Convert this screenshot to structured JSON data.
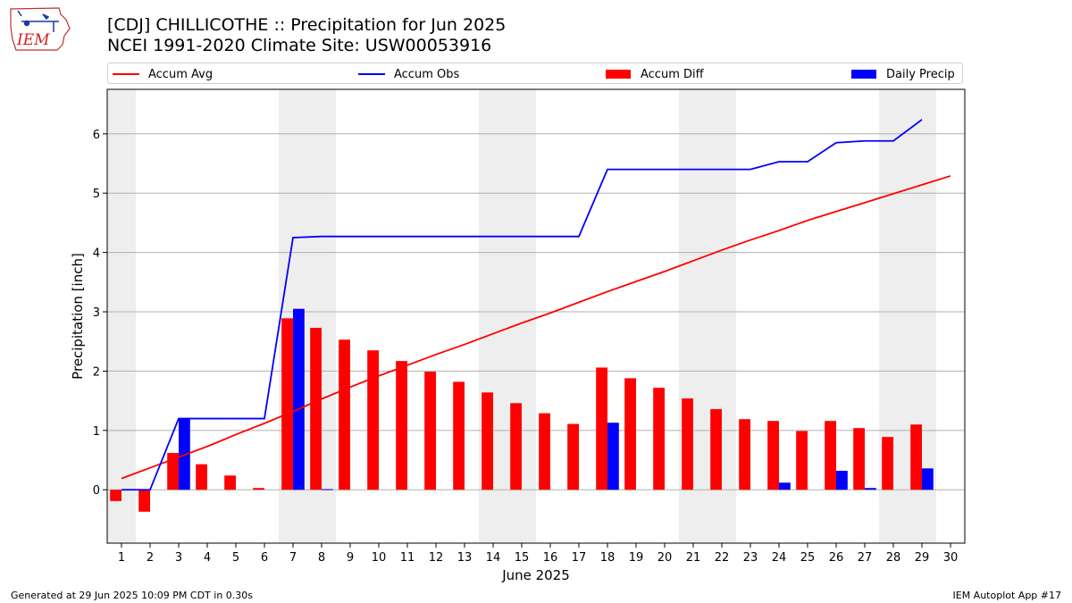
{
  "header": {
    "title_line1": "[CDJ] CHILLICOTHE :: Precipitation for Jun 2025",
    "title_line2": "NCEI 1991-2020 Climate Site: USW00053916"
  },
  "logo": {
    "text": "IEM",
    "icon": "iowa-state-outline-weather-logo"
  },
  "footer": {
    "generated": "Generated at 29 Jun 2025 10:09 PM CDT in 0.30s",
    "app": "IEM Autoplot App #17"
  },
  "colors": {
    "accum_avg": "#ff0000",
    "accum_obs": "#0000ff",
    "accum_diff": "#ff0000",
    "daily_precip": "#0000ff",
    "weekend_band": "#eeeeee",
    "grid": "#b0b0b0"
  },
  "chart_data": {
    "type": "bar",
    "xlabel": "June 2025",
    "ylabel": "Precipitation [inch]",
    "x": [
      1,
      2,
      3,
      4,
      5,
      6,
      7,
      8,
      9,
      10,
      11,
      12,
      13,
      14,
      15,
      16,
      17,
      18,
      19,
      20,
      21,
      22,
      23,
      24,
      25,
      26,
      27,
      28,
      29,
      30
    ],
    "xlim": [
      0.5,
      30.5
    ],
    "ylim": [
      -0.9,
      6.75
    ],
    "yticks": [
      0,
      1,
      2,
      3,
      4,
      5,
      6
    ],
    "grid": "horizontal",
    "legend_position": "top",
    "weekend_bands": [
      [
        1,
        1
      ],
      [
        7,
        8
      ],
      [
        14,
        15
      ],
      [
        21,
        22
      ],
      [
        28,
        29
      ]
    ],
    "series": [
      {
        "name": "Accum Avg",
        "kind": "line",
        "values": [
          0.19,
          0.37,
          0.55,
          0.73,
          0.93,
          1.12,
          1.32,
          1.53,
          1.73,
          1.92,
          2.1,
          2.28,
          2.45,
          2.63,
          2.81,
          2.98,
          3.16,
          3.34,
          3.51,
          3.68,
          3.86,
          4.04,
          4.21,
          4.37,
          4.54,
          4.69,
          4.84,
          4.99,
          5.14,
          5.29
        ]
      },
      {
        "name": "Accum Obs",
        "kind": "line",
        "values": [
          0.0,
          0.0,
          1.2,
          1.2,
          1.2,
          1.2,
          4.25,
          4.27,
          4.27,
          4.27,
          4.27,
          4.27,
          4.27,
          4.27,
          4.27,
          4.27,
          4.27,
          5.4,
          5.4,
          5.4,
          5.4,
          5.4,
          5.4,
          5.53,
          5.53,
          5.85,
          5.88,
          5.88,
          6.24,
          null
        ]
      },
      {
        "name": "Accum Diff",
        "kind": "bar",
        "values": [
          -0.19,
          -0.37,
          0.62,
          0.43,
          0.24,
          0.03,
          2.89,
          2.73,
          2.53,
          2.35,
          2.17,
          1.99,
          1.82,
          1.64,
          1.46,
          1.29,
          1.11,
          2.06,
          1.88,
          1.72,
          1.54,
          1.36,
          1.19,
          1.16,
          0.99,
          1.16,
          1.04,
          0.89,
          1.1,
          null
        ]
      },
      {
        "name": "Daily Precip",
        "kind": "bar",
        "values": [
          0.0,
          0.0,
          1.2,
          0.0,
          0.0,
          0.0,
          3.05,
          0.01,
          0.0,
          0.0,
          0.0,
          0.0,
          0.0,
          0.0,
          0.0,
          0.0,
          0.0,
          1.13,
          0.0,
          0.0,
          0.0,
          0.0,
          0.0,
          0.12,
          0.0,
          0.32,
          0.03,
          0.0,
          0.36,
          null
        ]
      }
    ]
  }
}
